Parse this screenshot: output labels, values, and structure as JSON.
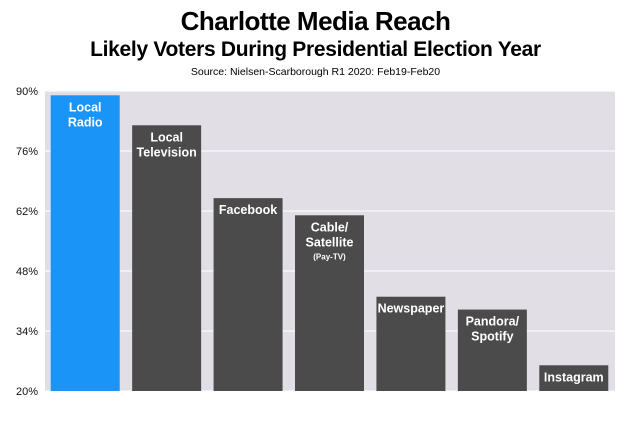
{
  "chart": {
    "title": "Charlotte Media Reach",
    "subtitle": "Likely Voters During Presidential Election Year",
    "source": "Source: Nielsen-Scarborough R1 2020: Feb19-Feb20"
  },
  "colors": {
    "highlight_bar": "#1a95f7",
    "bar": "#4b4b4b",
    "plot_background": "#e1dfe5",
    "grid": "#ffffff"
  },
  "chart_data": {
    "type": "bar",
    "title": "Charlotte Media Reach",
    "subtitle": "Likely Voters During Presidential Election Year",
    "source": "Source: Nielsen-Scarborough R1 2020: Feb19-Feb20",
    "categories": [
      "Local Radio",
      "Local Television",
      "Facebook",
      "Cable/ Satellite (Pay-TV)",
      "Newspaper",
      "Pandora/ Spotify",
      "Instagram"
    ],
    "bar_labels": [
      {
        "lines": [
          "Local",
          "Radio"
        ]
      },
      {
        "lines": [
          "Local",
          "Television"
        ]
      },
      {
        "lines": [
          "Facebook"
        ]
      },
      {
        "lines": [
          "Cable/",
          "Satellite"
        ],
        "small": "(Pay-TV)"
      },
      {
        "lines": [
          "Newspaper"
        ]
      },
      {
        "lines": [
          "Pandora/",
          "Spotify"
        ]
      },
      {
        "lines": [
          "Instagram"
        ]
      }
    ],
    "values": [
      89,
      82,
      65,
      61,
      42,
      39,
      26
    ],
    "highlight_index": 0,
    "ylim": [
      20,
      90
    ],
    "yticks": [
      20,
      34,
      48,
      62,
      76,
      90
    ],
    "ytick_labels": [
      "20%",
      "34%",
      "48%",
      "62%",
      "76%",
      "90%"
    ],
    "xlabel": "",
    "ylabel": "",
    "grid": true,
    "legend": "none"
  }
}
